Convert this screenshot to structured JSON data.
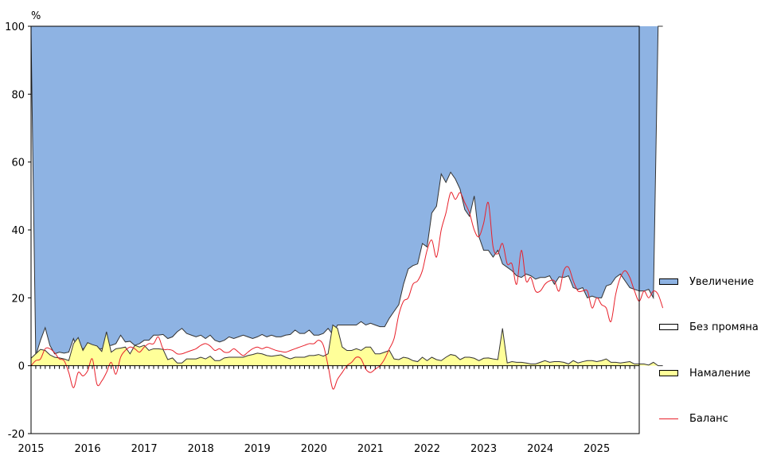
{
  "chart_data": {
    "type": "area",
    "y_unit": "%",
    "ylim": [
      -20,
      100
    ],
    "y_ticks": [
      "-20",
      "0",
      "20",
      "40",
      "60",
      "80",
      "100"
    ],
    "x_range": [
      "2015-01",
      "2025-10"
    ],
    "x_tick_labels": [
      "2015",
      "2016",
      "2017",
      "2018",
      "2019",
      "2020",
      "2021",
      "2022",
      "2023",
      "2024",
      "2025"
    ],
    "legend_position": "right",
    "colors": {
      "increase": "#8eb3e3",
      "no_change": "#ffffff",
      "decrease": "#ffff99",
      "balance": "#e8202a",
      "outline": "#333333"
    },
    "series_labels": {
      "increase": "Увеличение",
      "no_change": "Без промяна",
      "decrease": "Намаление",
      "balance": "Баланс"
    },
    "months_step": 1,
    "decrease_series": [
      2.2,
      3.5,
      4.8,
      4.5,
      3.2,
      2.5,
      2.3,
      2,
      1.5,
      6.5,
      8.3,
      4.5,
      6.8,
      6.2,
      5.8,
      4.2,
      10,
      4,
      5,
      5.2,
      5.5,
      3.5,
      6,
      5.5,
      6,
      4.5,
      5,
      5,
      4.8,
      1.8,
      2.3,
      0.8,
      0.8,
      2,
      2,
      2,
      2.5,
      2,
      2.8,
      1.5,
      1.5,
      2.3,
      2.5,
      2.5,
      2.5,
      2.5,
      3,
      3.3,
      3.7,
      3.5,
      3,
      2.8,
      3,
      3.2,
      2.5,
      2,
      2.5,
      2.5,
      2.5,
      3,
      3,
      3.3,
      2.8,
      3.5,
      12,
      11,
      5.5,
      4.5,
      4.5,
      5,
      4.5,
      5.5,
      5.5,
      3.5,
      3.5,
      4,
      4.5,
      2,
      1.8,
      2.5,
      2.2,
      1.5,
      1.2,
      2.5,
      1.5,
      2.5,
      1.8,
      1.5,
      2.5,
      3.3,
      3,
      1.8,
      2.5,
      2.5,
      2.2,
      1.5,
      2.2,
      2.3,
      2,
      1.8,
      11,
      0.8,
      1.2,
      1,
      1,
      0.8,
      0.5,
      0.5,
      1,
      1.5,
      1,
      1.2,
      1.2,
      1,
      0.5,
      1.5,
      0.8,
      1.2,
      1.5,
      1.5,
      1.2,
      1.5,
      2,
      1,
      1,
      0.8,
      1,
      1.2,
      0.5,
      0.5,
      0.5,
      0.2,
      1
    ],
    "increase_series": [
      2.2,
      97,
      92.5,
      88.8,
      94,
      96.5,
      96,
      96.3,
      96,
      92,
      95.5,
      95,
      94.5,
      96,
      95,
      95,
      94,
      94,
      93.5,
      91,
      93,
      92.8,
      94,
      93.5,
      92.5,
      92.5,
      91,
      91,
      90.8,
      92,
      91.5,
      90,
      89,
      90.5,
      91,
      91.5,
      91,
      92,
      91,
      92.5,
      93,
      92.5,
      91.5,
      92,
      91.5,
      91,
      91.5,
      92,
      91.5,
      90.8,
      91.5,
      91,
      91.5,
      91.5,
      91,
      90.8,
      89.5,
      90.5,
      90.5,
      89.5,
      91,
      91,
      90.5,
      89,
      90.8,
      88,
      88,
      88,
      88,
      88,
      87,
      88,
      87.5,
      88,
      88.5,
      88.5,
      86,
      84,
      82,
      76,
      71.5,
      70.5,
      70,
      64,
      65,
      55,
      53,
      43.5,
      46,
      43,
      45,
      48,
      54,
      56,
      50,
      62,
      66,
      66,
      68,
      66,
      70,
      71,
      72,
      73.5,
      74,
      73,
      73.5,
      74.5,
      74,
      74,
      73.5,
      76,
      73.8,
      74,
      73.5,
      77,
      77.5,
      77,
      80,
      79.5,
      80,
      80,
      76.5,
      76,
      74,
      73,
      75,
      77,
      77.5,
      78,
      78,
      77.5,
      80
    ],
    "balance_series": [
      0,
      1.5,
      2,
      5,
      5,
      3.8,
      2,
      1.5,
      -2,
      -6.5,
      -2,
      -3,
      -1.5,
      2,
      -5.5,
      -4.5,
      -2,
      1,
      -2.5,
      2.5,
      4.5,
      5.5,
      5,
      4,
      5.5,
      6.5,
      6.5,
      8.5,
      5,
      4.8,
      4.5,
      3.5,
      3.5,
      4,
      4.5,
      5,
      6,
      6.5,
      5.8,
      4.5,
      5,
      4,
      4,
      5,
      4,
      3,
      4,
      5,
      5.5,
      5,
      5.5,
      5,
      4.5,
      4.2,
      4,
      4.5,
      5,
      5.5,
      6,
      6.5,
      6.5,
      7.5,
      6,
      0,
      -6.8,
      -4,
      -2,
      0,
      1,
      2.5,
      2,
      -1,
      -2,
      -1,
      0,
      2,
      5,
      8,
      15,
      19,
      20,
      24,
      25,
      28,
      34,
      37,
      32,
      40,
      45,
      51,
      49,
      51,
      48,
      45,
      40,
      38,
      42,
      48,
      35,
      33,
      36,
      30,
      30,
      24,
      34,
      25,
      26,
      22,
      22,
      24,
      25,
      25,
      22,
      28,
      29,
      25,
      22,
      22,
      22,
      17,
      20,
      18,
      17,
      13,
      21,
      26,
      28,
      26,
      22,
      19,
      22,
      20,
      22,
      21,
      17
    ]
  }
}
